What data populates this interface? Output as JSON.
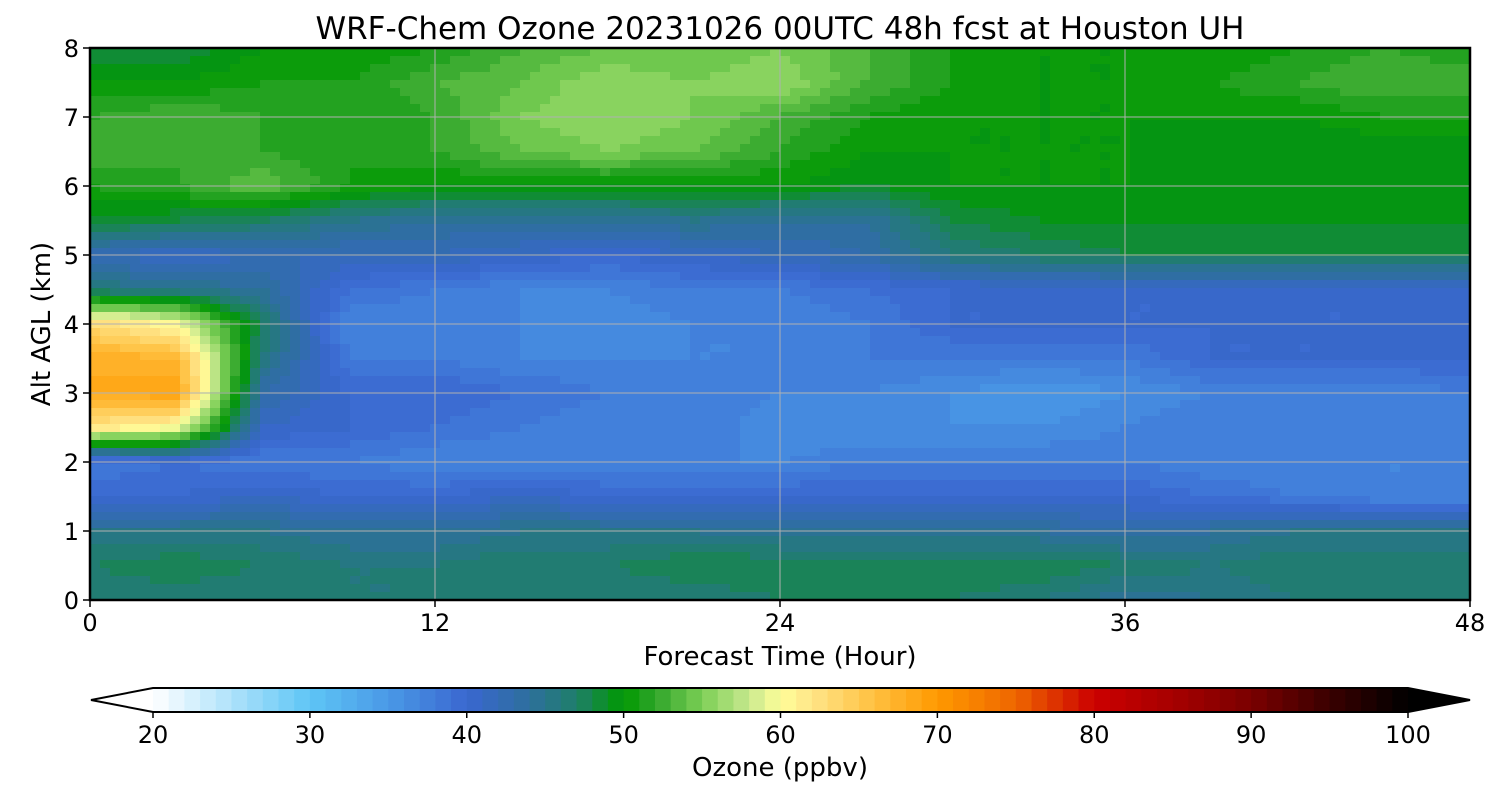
{
  "chart_data": {
    "type": "heatmap",
    "title": "WRF-Chem Ozone  20231026 00UTC 48h fcst at Houston UH",
    "xlabel": "Forecast Time (Hour)",
    "ylabel": "Alt AGL (km)",
    "xlim": [
      0,
      48
    ],
    "ylim": [
      0,
      8
    ],
    "xticks": [
      "0",
      "12",
      "24",
      "36",
      "48"
    ],
    "yticks": [
      "0",
      "1",
      "2",
      "3",
      "4",
      "5",
      "6",
      "7",
      "8"
    ],
    "grid": true,
    "x_hours": [
      0,
      3,
      6,
      9,
      12,
      15,
      18,
      21,
      24,
      27,
      30,
      33,
      36,
      39,
      42,
      45,
      48
    ],
    "z_km": [
      0,
      0.5,
      1,
      1.5,
      2,
      2.5,
      3,
      3.5,
      4,
      4.5,
      5,
      5.5,
      6,
      6.5,
      7,
      7.5,
      8
    ],
    "ozone_ppbv": [
      [
        46,
        46,
        46,
        46,
        46,
        46,
        46,
        46,
        47,
        47,
        47,
        46,
        44,
        45,
        46,
        46,
        46
      ],
      [
        47,
        48,
        47,
        46,
        46,
        47,
        47,
        48,
        48,
        48,
        48,
        48,
        47,
        46,
        47,
        47,
        47
      ],
      [
        45,
        45,
        45,
        44,
        44,
        45,
        45,
        45,
        44,
        44,
        44,
        44,
        43,
        44,
        45,
        45,
        45
      ],
      [
        40,
        40,
        41,
        40,
        40,
        41,
        40,
        40,
        40,
        40,
        40,
        40,
        40,
        39,
        38,
        37,
        37
      ],
      [
        38,
        39,
        38,
        38,
        37,
        37,
        37,
        37,
        37,
        38,
        38,
        38,
        38,
        37,
        37,
        37,
        37
      ],
      [
        62,
        60,
        41,
        40,
        39,
        38,
        37,
        38,
        36,
        36,
        36,
        36,
        37,
        38,
        38,
        38,
        38
      ],
      [
        68,
        69,
        43,
        40,
        40,
        39,
        38,
        38,
        37,
        37,
        36,
        35,
        36,
        37,
        37,
        37,
        38
      ],
      [
        68,
        67,
        46,
        38,
        38,
        37,
        37,
        37,
        37,
        38,
        38,
        38,
        38,
        40,
        40,
        40,
        40
      ],
      [
        63,
        60,
        47,
        37,
        37,
        37,
        36,
        37,
        37,
        38,
        40,
        40,
        40,
        40,
        40,
        40,
        40
      ],
      [
        46,
        45,
        44,
        39,
        38,
        37,
        37,
        38,
        38,
        39,
        40,
        40,
        40,
        40,
        40,
        40,
        40
      ],
      [
        42,
        41,
        42,
        42,
        42,
        41,
        40,
        41,
        42,
        43,
        46,
        47,
        48,
        48,
        48,
        48,
        48
      ],
      [
        49,
        48,
        47,
        45,
        44,
        44,
        44,
        45,
        44,
        44,
        48,
        49,
        49,
        49,
        49,
        49,
        49
      ],
      [
        51,
        52,
        54,
        51,
        50,
        50,
        50,
        50,
        50,
        49,
        50,
        50,
        50,
        50,
        50,
        50,
        50
      ],
      [
        53,
        52,
        52,
        51,
        52,
        54,
        55,
        54,
        52,
        50,
        50,
        50,
        50,
        49,
        49,
        49,
        49
      ],
      [
        52,
        53,
        52,
        51,
        52,
        55,
        56,
        55,
        53,
        51,
        50,
        50,
        50,
        50,
        50,
        51,
        51
      ],
      [
        50,
        50,
        51,
        51,
        53,
        54,
        56,
        55,
        56,
        53,
        51,
        50,
        50,
        51,
        52,
        53,
        53
      ],
      [
        48,
        48,
        50,
        50,
        51,
        53,
        54,
        54,
        55,
        53,
        51,
        50,
        50,
        50,
        51,
        52,
        51
      ]
    ],
    "colorbar": {
      "label": "Ozone  (ppbv)",
      "min": 20,
      "max": 100,
      "step": 1,
      "extend": "both",
      "ticks": [
        "20",
        "30",
        "40",
        "50",
        "60",
        "70",
        "80",
        "90",
        "100"
      ],
      "color_stops": [
        [
          20,
          "#ffffff"
        ],
        [
          30,
          "#5ec5f5"
        ],
        [
          35,
          "#4a99e6"
        ],
        [
          40,
          "#3a67d0"
        ],
        [
          44,
          "#2d6f9c"
        ],
        [
          47,
          "#1f7f6a"
        ],
        [
          50,
          "#009900"
        ],
        [
          52,
          "#2fa52a"
        ],
        [
          55,
          "#7ccf55"
        ],
        [
          58,
          "#c8e88e"
        ],
        [
          60,
          "#ffff99"
        ],
        [
          62,
          "#ffe488"
        ],
        [
          66,
          "#ffc040"
        ],
        [
          70,
          "#ff9900"
        ],
        [
          75,
          "#ee6600"
        ],
        [
          80,
          "#cc0000"
        ],
        [
          85,
          "#a60000"
        ],
        [
          90,
          "#7a0000"
        ],
        [
          95,
          "#3a0000"
        ],
        [
          100,
          "#000000"
        ]
      ]
    }
  }
}
